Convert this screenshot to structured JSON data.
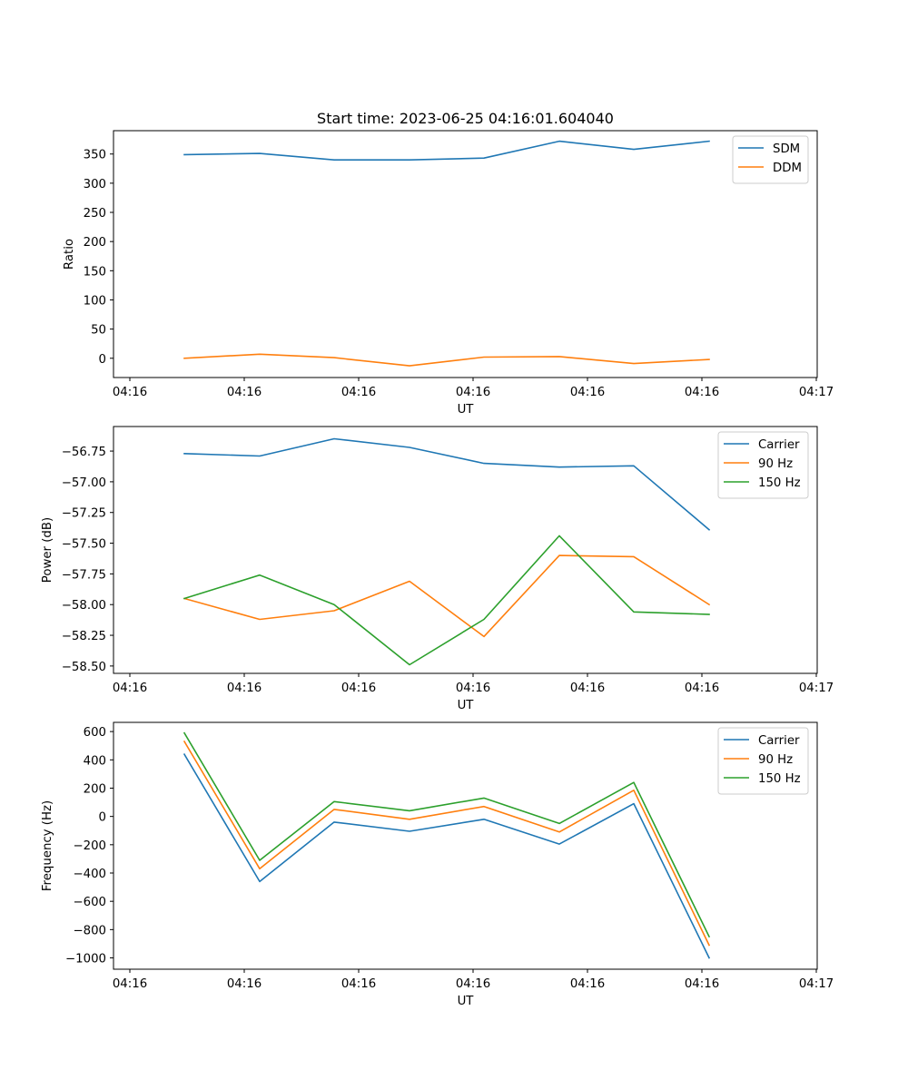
{
  "figure": {
    "title": "Start time: 2023-06-25 04:16:01.604040"
  },
  "chart_data": [
    {
      "type": "line",
      "title": "Start time: 2023-06-25 04:16:01.604040",
      "xlabel": "UT",
      "ylabel": "Ratio",
      "x_tick_labels": [
        "04:16",
        "04:16",
        "04:16",
        "04:16",
        "04:16",
        "04:16",
        "04:17"
      ],
      "y_ticks": [
        0,
        50,
        100,
        150,
        200,
        250,
        300,
        350
      ],
      "ylim": [
        -33,
        390
      ],
      "legend_position": "top-right",
      "grid": false,
      "series": [
        {
          "name": "SDM",
          "color": "#1f77b4",
          "values": [
            349,
            351,
            340,
            340,
            343,
            372,
            358,
            372
          ]
        },
        {
          "name": "DDM",
          "color": "#ff7f0e",
          "values": [
            0,
            7,
            1,
            -13,
            2,
            3,
            -9,
            -2
          ]
        }
      ]
    },
    {
      "type": "line",
      "title": "",
      "xlabel": "UT",
      "ylabel": "Power (dB)",
      "x_tick_labels": [
        "04:16",
        "04:16",
        "04:16",
        "04:16",
        "04:16",
        "04:16",
        "04:17"
      ],
      "y_ticks": [
        -58.5,
        -58.25,
        -58.0,
        -57.75,
        -57.5,
        -57.25,
        -57.0,
        -56.75
      ],
      "y_tick_labels": [
        "−58.50",
        "−58.25",
        "−58.00",
        "−57.75",
        "−57.50",
        "−57.25",
        "−57.00",
        "−56.75"
      ],
      "ylim": [
        -58.56,
        -56.55
      ],
      "legend_position": "top-right",
      "grid": false,
      "series": [
        {
          "name": "Carrier",
          "color": "#1f77b4",
          "values": [
            -56.77,
            -56.79,
            -56.65,
            -56.72,
            -56.85,
            -56.88,
            -56.87,
            -57.39
          ]
        },
        {
          "name": "90 Hz",
          "color": "#ff7f0e",
          "values": [
            -57.95,
            -58.12,
            -58.05,
            -57.81,
            -58.26,
            -57.6,
            -57.61,
            -58.0
          ]
        },
        {
          "name": "150 Hz",
          "color": "#2ca02c",
          "values": [
            -57.95,
            -57.76,
            -58.0,
            -58.49,
            -58.12,
            -57.44,
            -58.06,
            -58.08
          ]
        }
      ]
    },
    {
      "type": "line",
      "title": "",
      "xlabel": "UT",
      "ylabel": "Frequency (Hz)",
      "x_tick_labels": [
        "04:16",
        "04:16",
        "04:16",
        "04:16",
        "04:16",
        "04:16",
        "04:17"
      ],
      "y_ticks": [
        -1000,
        -800,
        -600,
        -400,
        -200,
        0,
        200,
        400,
        600
      ],
      "y_tick_labels": [
        "−1000",
        "−800",
        "−600",
        "−400",
        "−200",
        "0",
        "200",
        "400",
        "600"
      ],
      "ylim": [
        -1080,
        665
      ],
      "legend_position": "top-right",
      "grid": false,
      "series": [
        {
          "name": "Carrier",
          "color": "#1f77b4",
          "values": [
            440,
            -460,
            -40,
            -105,
            -20,
            -195,
            90,
            -1000
          ]
        },
        {
          "name": "90 Hz",
          "color": "#ff7f0e",
          "values": [
            530,
            -370,
            50,
            -20,
            70,
            -110,
            185,
            -910
          ]
        },
        {
          "name": "150 Hz",
          "color": "#2ca02c",
          "values": [
            590,
            -310,
            105,
            40,
            130,
            -50,
            240,
            -850
          ]
        }
      ]
    }
  ]
}
